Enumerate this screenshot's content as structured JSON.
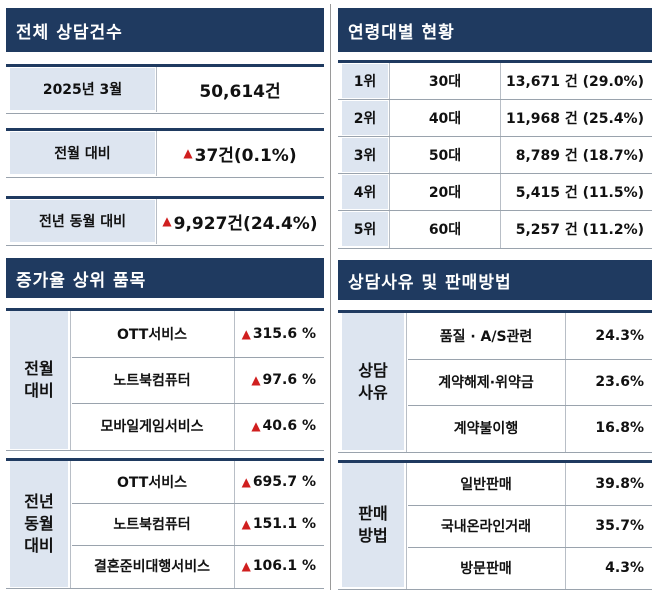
{
  "colors": {
    "header_bg": "#1f3a60",
    "label_bg": "#dde5f0",
    "arrow": "#d01f1f"
  },
  "total": {
    "title": "전체 상담건수",
    "month_label": "2025년 3월",
    "month_value": "50,614건",
    "prev_label": "전월 대비",
    "prev_value": "37건(0.1%)",
    "year_label": "전년 동월 대비",
    "year_value": "9,927건(24.4%)"
  },
  "growth": {
    "title": "증가율 상위 품목",
    "groups": [
      {
        "label_lines": [
          "전월",
          "대비"
        ],
        "items": [
          {
            "name": "OTT서비스",
            "rate": "315.6 %"
          },
          {
            "name": "노트북컴퓨터",
            "rate": "97.6 %"
          },
          {
            "name": "모바일게임서비스",
            "rate": "40.6 %"
          }
        ]
      },
      {
        "label_lines": [
          "전년",
          "동월",
          "대비"
        ],
        "items": [
          {
            "name": "OTT서비스",
            "rate": "695.7 %"
          },
          {
            "name": "노트북컴퓨터",
            "rate": "151.1 %"
          },
          {
            "name": "결혼준비대행서비스",
            "rate": "106.1 %"
          }
        ]
      }
    ]
  },
  "age": {
    "title": "연령대별 현황",
    "rows": [
      {
        "rank": "1위",
        "age": "30대",
        "count": "13,671 건 (29.0%)"
      },
      {
        "rank": "2위",
        "age": "40대",
        "count": "11,968 건 (25.4%)"
      },
      {
        "rank": "3위",
        "age": "50대",
        "count": "8,789 건 (18.7%)"
      },
      {
        "rank": "4위",
        "age": "20대",
        "count": "5,415 건 (11.5%)"
      },
      {
        "rank": "5위",
        "age": "60대",
        "count": "5,257 건 (11.2%)"
      }
    ]
  },
  "reason": {
    "title": "상담사유 및 판매방법",
    "groups": [
      {
        "label_lines": [
          "상담",
          "사유"
        ],
        "items": [
          {
            "name": "품질 · A/S관련",
            "pct": "24.3%"
          },
          {
            "name": "계약해제·위약금",
            "pct": "23.6%"
          },
          {
            "name": "계약불이행",
            "pct": "16.8%"
          }
        ]
      },
      {
        "label_lines": [
          "판매",
          "방법"
        ],
        "items": [
          {
            "name": "일반판매",
            "pct": "39.8%"
          },
          {
            "name": "국내온라인거래",
            "pct": "35.7%"
          },
          {
            "name": "방문판매",
            "pct": "4.3%"
          }
        ]
      }
    ]
  }
}
